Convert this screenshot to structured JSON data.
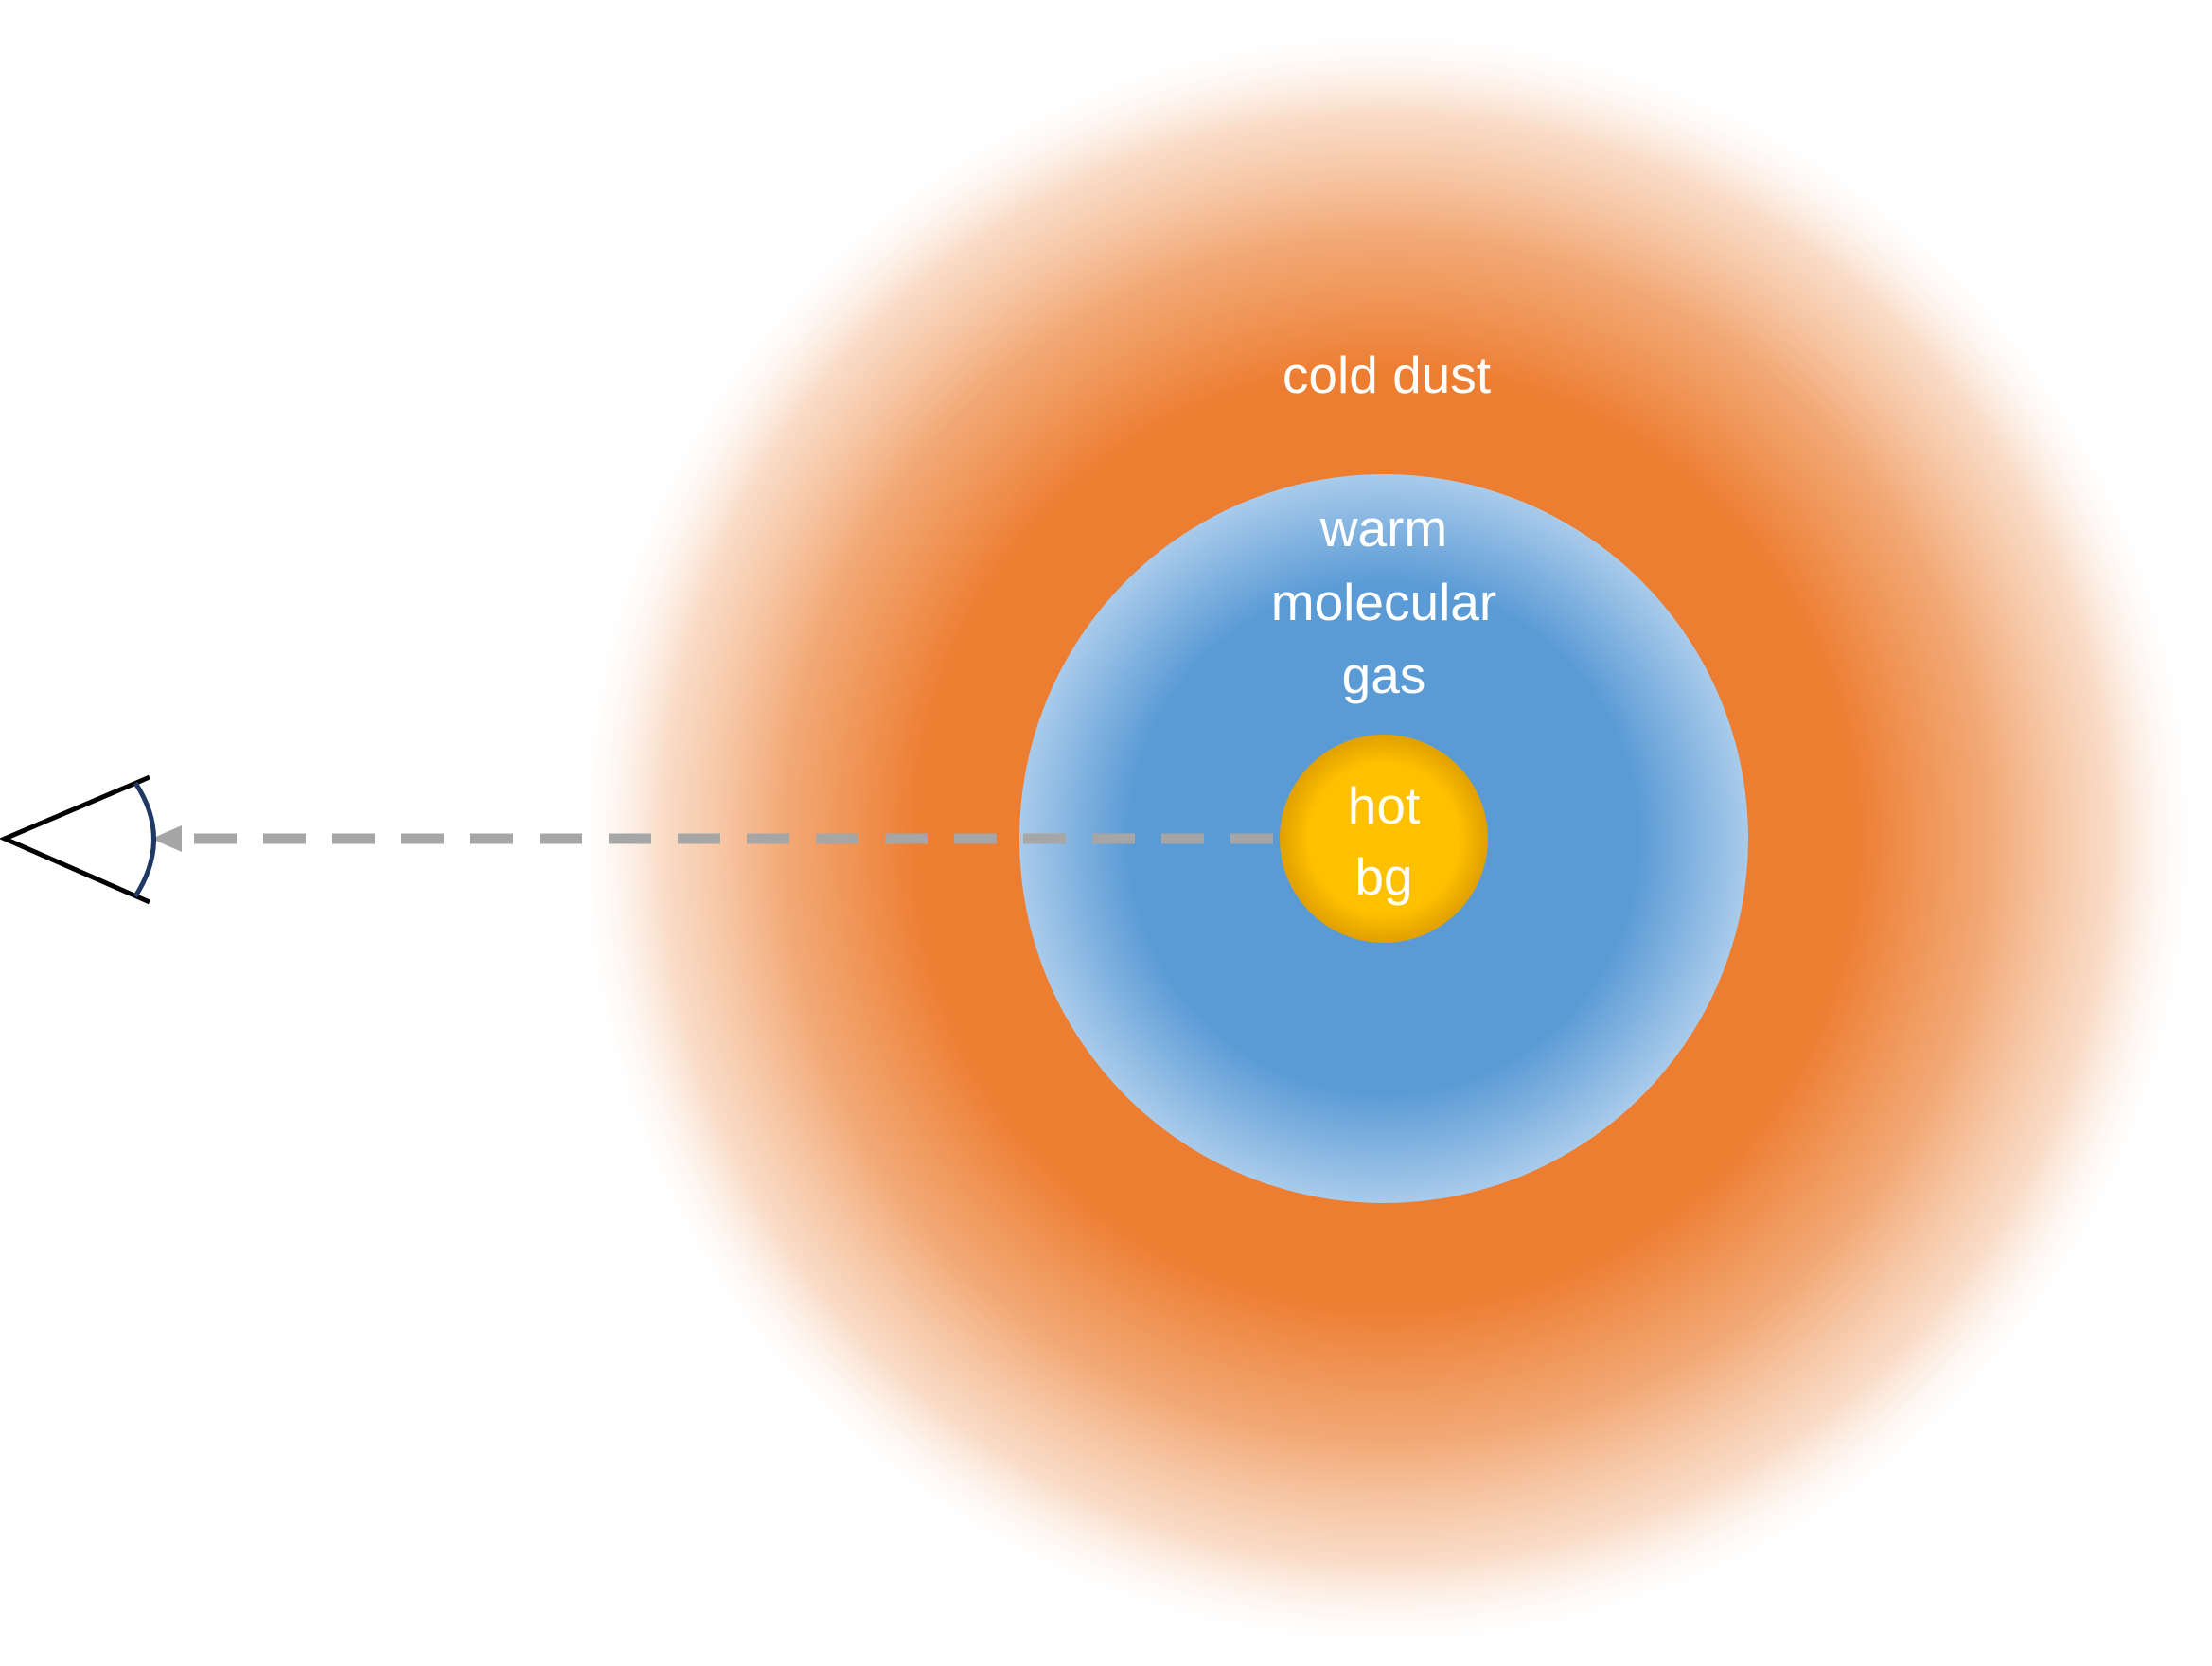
{
  "labels": {
    "cold_dust": "cold dust",
    "warm_gas_line1": "warm",
    "warm_gas_line2": "molecular",
    "warm_gas_line3": "gas",
    "hot_bg_line1": "hot",
    "hot_bg_line2": "bg"
  },
  "colors": {
    "cold_dust": "#ED7D31",
    "warm_gas": "#5B9BD5",
    "warm_gas_edge": "#A9CBEB",
    "hot_bg": "#FFC000",
    "hot_bg_edge": "#E0A000",
    "arrow": "#A6A6A6",
    "eye_outline": "#000000",
    "eye_lens": "#1F3864"
  }
}
